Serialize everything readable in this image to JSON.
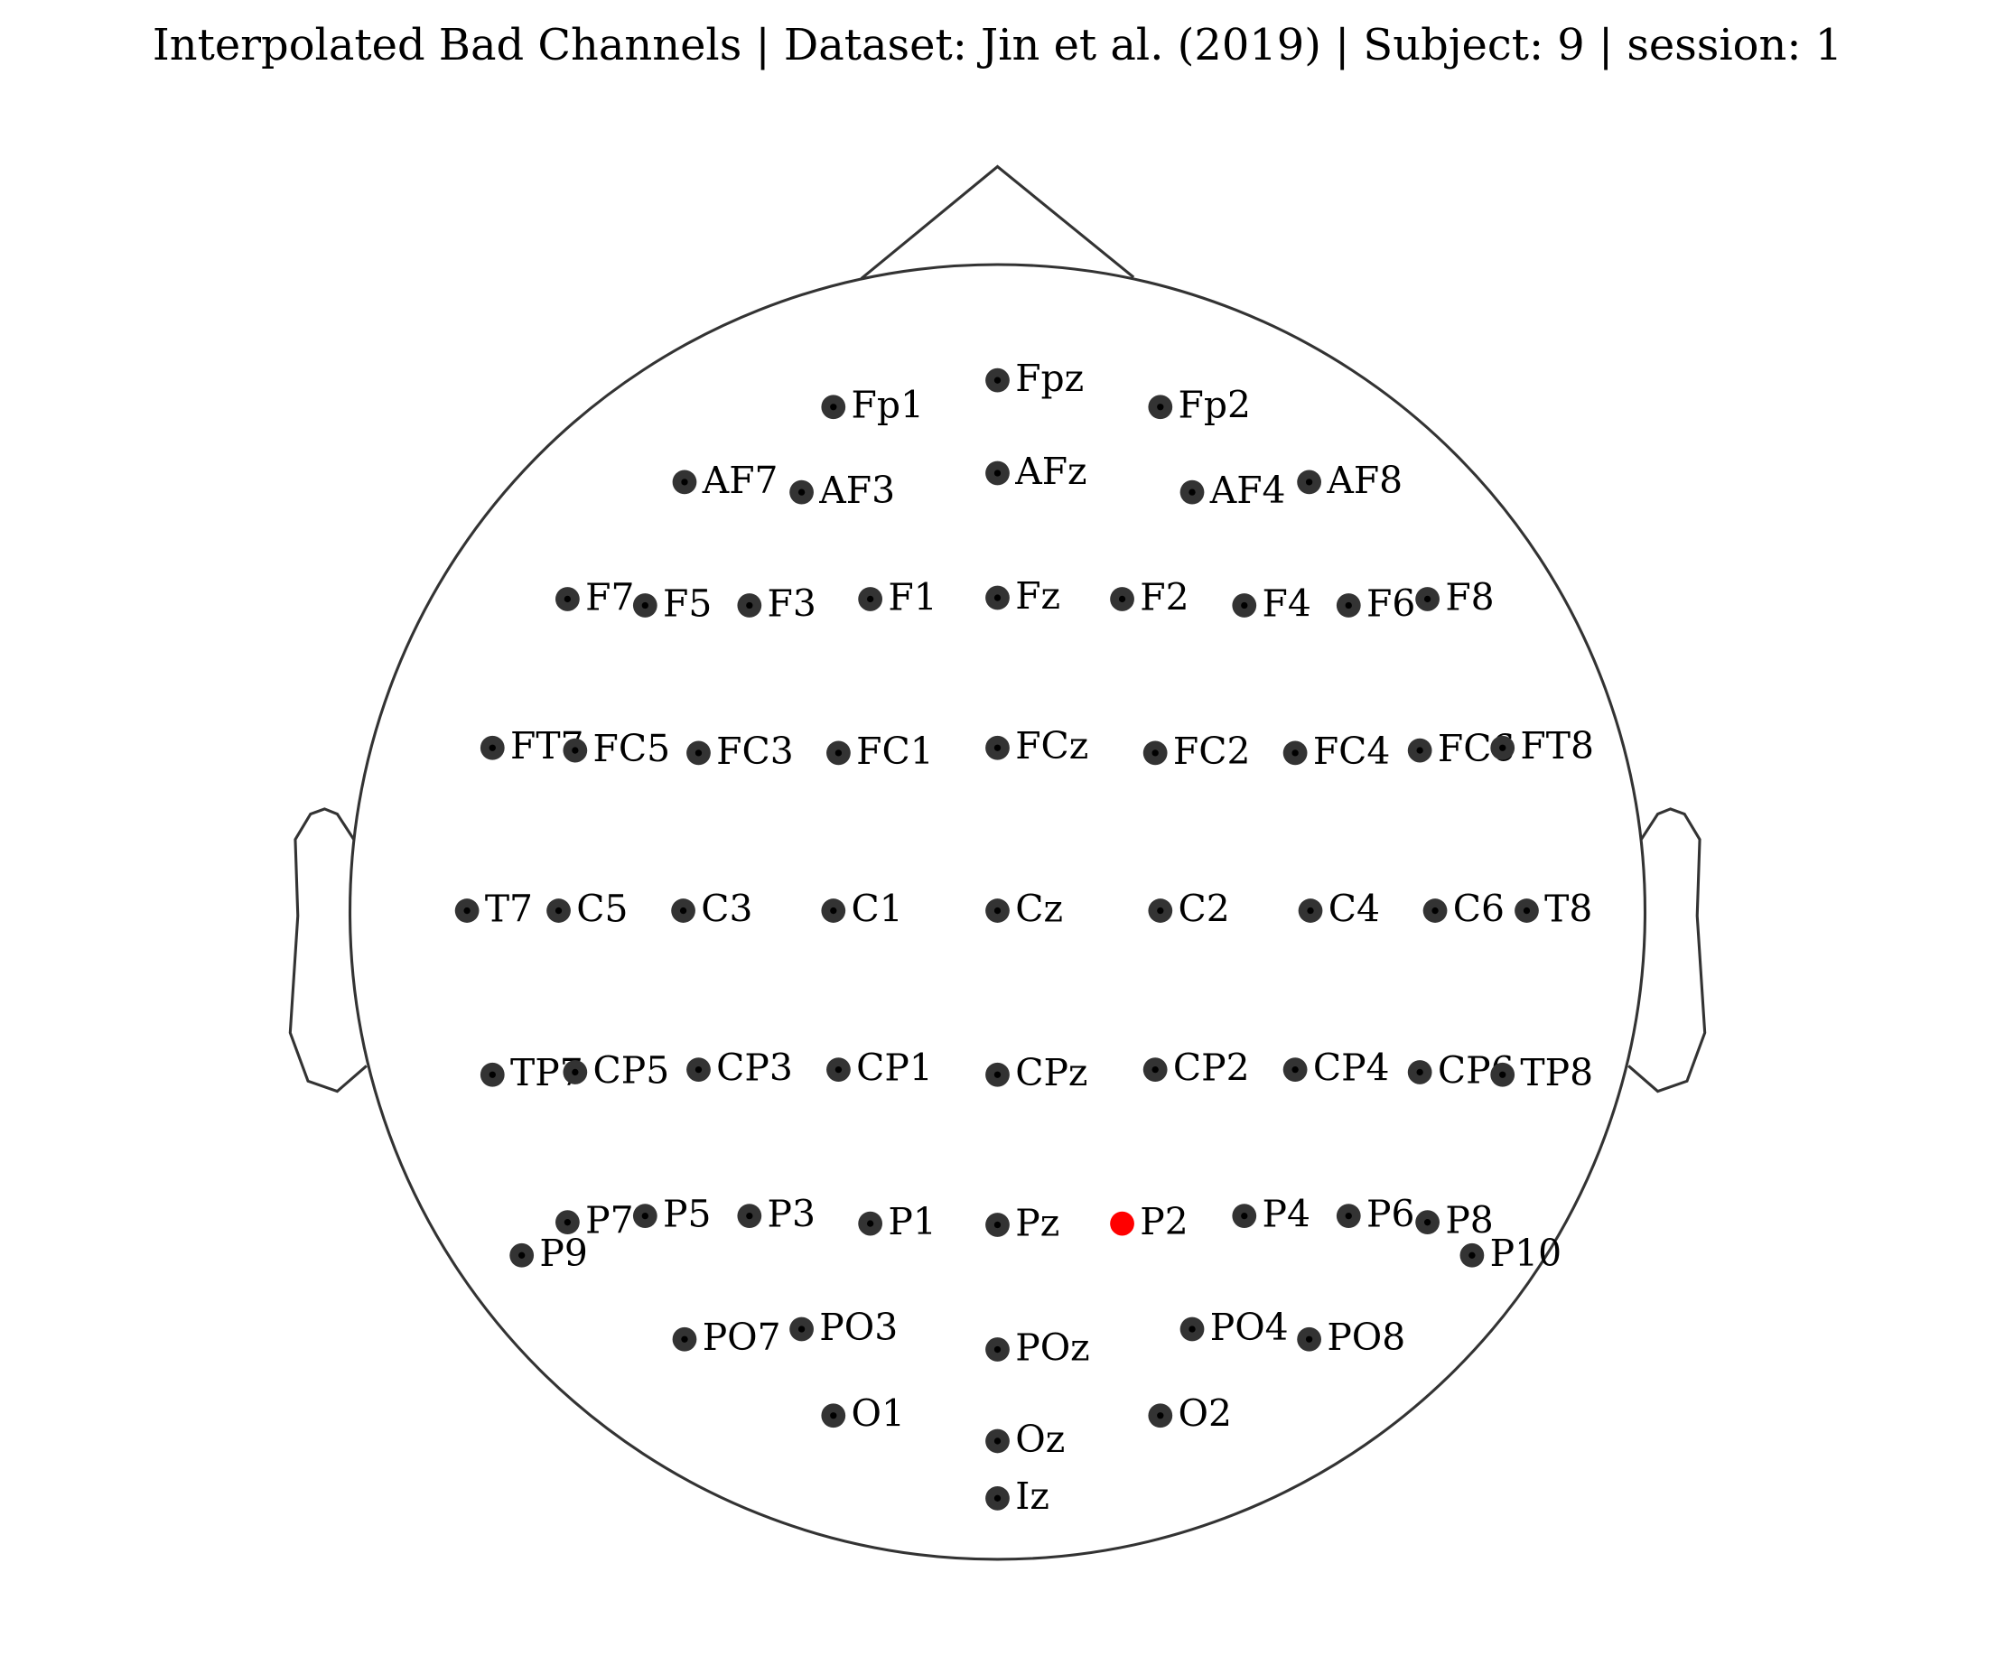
{
  "title": "Interpolated Bad Channels | Dataset: Jin et al. (2019) | Subject: 9 | session: 1",
  "channel_color": "#333333",
  "bad_color": "#ff0000",
  "nodes": [
    {
      "label": "Fp1"
    },
    {
      "label": "Fpz"
    },
    {
      "label": "Fp2"
    },
    {
      "label": "AF7"
    },
    {
      "label": "AF3"
    },
    {
      "label": "AFz"
    },
    {
      "label": "AF4"
    },
    {
      "label": "AF8"
    },
    {
      "label": "F7"
    },
    {
      "label": "F5"
    },
    {
      "label": "F3"
    },
    {
      "label": "F1"
    },
    {
      "label": "Fz"
    },
    {
      "label": "F2"
    },
    {
      "label": "F4"
    },
    {
      "label": "F6"
    },
    {
      "label": "F8"
    },
    {
      "label": "FT7"
    },
    {
      "label": "FC5"
    },
    {
      "label": "FC3"
    },
    {
      "label": "FC1"
    },
    {
      "label": "FCz"
    },
    {
      "label": "FC2"
    },
    {
      "label": "FC4"
    },
    {
      "label": "FC6"
    },
    {
      "label": "FT8"
    },
    {
      "label": "T7"
    },
    {
      "label": "C5"
    },
    {
      "label": "C3"
    },
    {
      "label": "C1"
    },
    {
      "label": "Cz"
    },
    {
      "label": "C2"
    },
    {
      "label": "C4"
    },
    {
      "label": "C6"
    },
    {
      "label": "T8"
    },
    {
      "label": "TP7"
    },
    {
      "label": "CP5"
    },
    {
      "label": "CP3"
    },
    {
      "label": "CP1"
    },
    {
      "label": "CPz"
    },
    {
      "label": "CP2"
    },
    {
      "label": "CP4"
    },
    {
      "label": "CP6"
    },
    {
      "label": "TP8"
    },
    {
      "label": "P7"
    },
    {
      "label": "P5"
    },
    {
      "label": "P3"
    },
    {
      "label": "P1"
    },
    {
      "label": "Pz"
    },
    {
      "label": "P2",
      "bad": true
    },
    {
      "label": "P4"
    },
    {
      "label": "P6"
    },
    {
      "label": "P8"
    },
    {
      "label": "P9"
    },
    {
      "label": "P10"
    },
    {
      "label": "PO7"
    },
    {
      "label": "PO3"
    },
    {
      "label": "POz"
    },
    {
      "label": "PO4"
    },
    {
      "label": "PO8"
    },
    {
      "label": "O1"
    },
    {
      "label": "Oz"
    },
    {
      "label": "O2"
    },
    {
      "label": "Iz"
    }
  ]
}
